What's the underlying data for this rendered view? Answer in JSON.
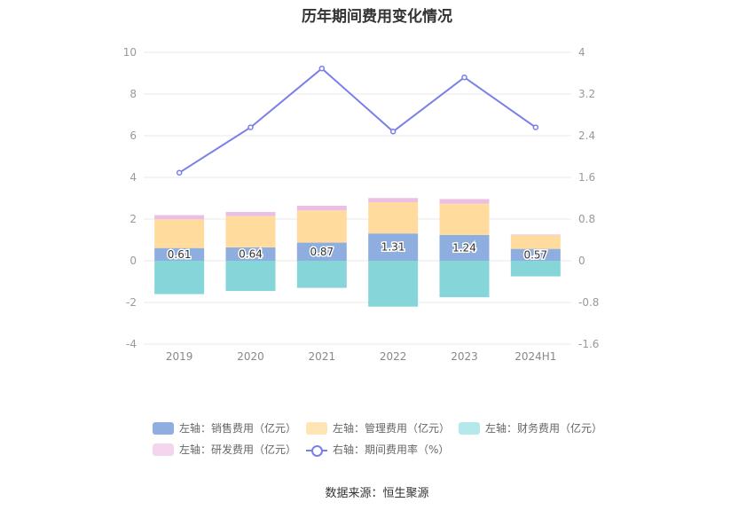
{
  "title": "历年期间费用变化情况",
  "source": "数据来源：恒生聚源",
  "chart_data": {
    "type": "bar",
    "categories": [
      "2019",
      "2020",
      "2021",
      "2022",
      "2023",
      "2024H1"
    ],
    "left_axis": {
      "ticks": [
        "10",
        "8",
        "6",
        "4",
        "2",
        "0",
        "-2",
        "-4"
      ],
      "min": -4,
      "max": 10
    },
    "right_axis": {
      "ticks": [
        "4",
        "3.2",
        "2.4",
        "1.6",
        "0.8",
        "0",
        "-0.8",
        "-1.6"
      ],
      "min": -1.6,
      "max": 4
    },
    "series": [
      {
        "name": "左轴：销售费用（亿元）",
        "axis": "left",
        "type": "bar",
        "color": "#8eaedf",
        "values": [
          0.61,
          0.64,
          0.87,
          1.31,
          1.24,
          0.57
        ],
        "labels": [
          "0.61",
          "0.64",
          "0.87",
          "1.31",
          "1.24",
          "0.57"
        ]
      },
      {
        "name": "左轴：管理费用（亿元）",
        "axis": "left",
        "type": "bar",
        "color": "#ffdc9e",
        "values": [
          1.38,
          1.5,
          1.55,
          1.5,
          1.5,
          0.65
        ]
      },
      {
        "name": "左轴：财务费用（亿元）",
        "axis": "left",
        "type": "bar",
        "color": "#86d6d9",
        "values": [
          -1.6,
          -1.45,
          -1.3,
          -2.2,
          -1.75,
          -0.75
        ]
      },
      {
        "name": "左轴：研发费用（亿元）",
        "axis": "left",
        "type": "bar",
        "color": "#ebbfe3",
        "values": [
          0.2,
          0.2,
          0.22,
          0.2,
          0.22,
          0.04
        ]
      },
      {
        "name": "右轴：期间费用率（%）",
        "axis": "right",
        "type": "line",
        "color": "#7b7fe8",
        "values": [
          1.69,
          2.56,
          3.69,
          2.48,
          3.52,
          2.56
        ]
      }
    ],
    "legend_position": "bottom",
    "grid": true
  }
}
